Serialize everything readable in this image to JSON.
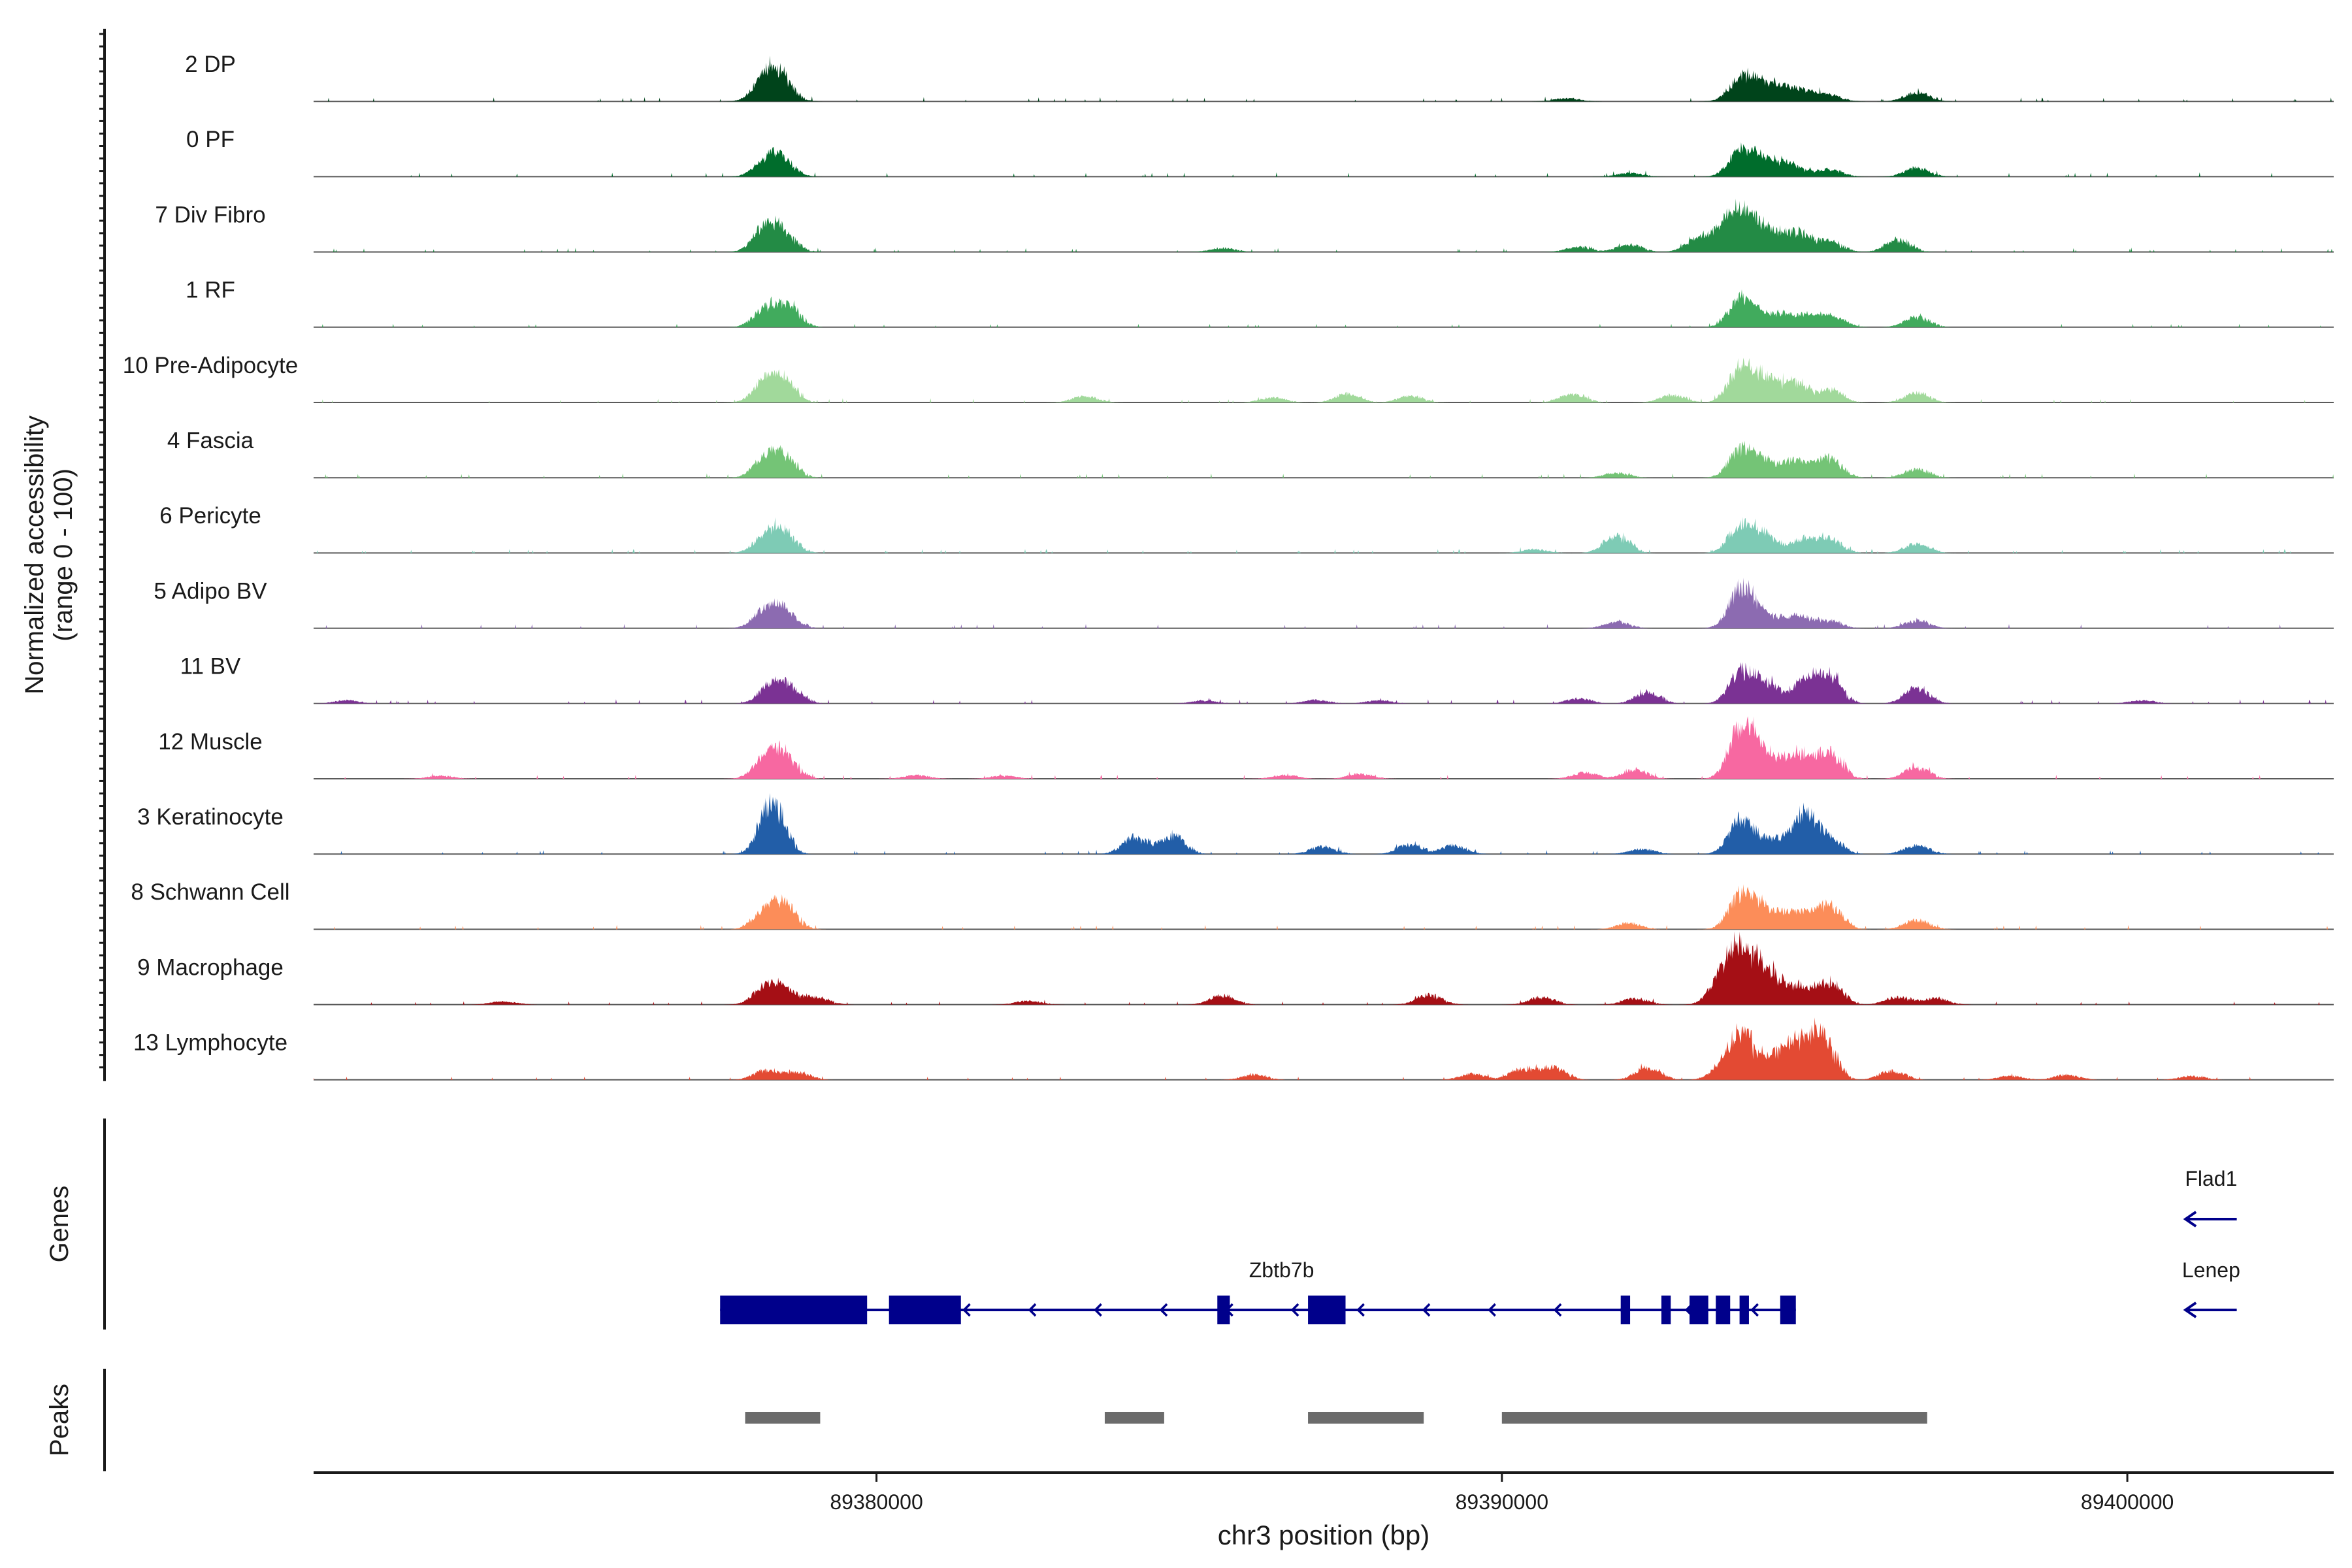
{
  "chart_data": {
    "type": "area",
    "title": "",
    "y_axis_title_line1": "Normalized accessibility",
    "y_axis_title_line2": "(range 0 - 100)",
    "y_range": [
      0,
      100
    ],
    "xlabel": "chr3 position (bp)",
    "xlim": [
      89371000,
      89403300
    ],
    "x_ticks": [
      {
        "value": 89380000,
        "label": "89380000"
      },
      {
        "value": 89390000,
        "label": "89390000"
      },
      {
        "value": 89400000,
        "label": "89400000"
      }
    ],
    "tracks": [
      {
        "name": "2 DP",
        "color": "#00441b",
        "peaks": [
          [
            89378200,
            38
          ],
          [
            89378450,
            30
          ],
          [
            89393800,
            36
          ],
          [
            89394150,
            22
          ],
          [
            89394450,
            18
          ],
          [
            89394800,
            14
          ],
          [
            89395200,
            10
          ],
          [
            89396600,
            14
          ],
          [
            89391000,
            5
          ]
        ]
      },
      {
        "name": "0 PF",
        "color": "#006d2c",
        "peaks": [
          [
            89378200,
            22
          ],
          [
            89378450,
            26
          ],
          [
            89393800,
            44
          ],
          [
            89394200,
            26
          ],
          [
            89394600,
            18
          ],
          [
            89395200,
            12
          ],
          [
            89396600,
            14
          ],
          [
            89392000,
            6
          ]
        ]
      },
      {
        "name": "7 Div Fibro",
        "color": "#238b45",
        "peaks": [
          [
            89378200,
            40
          ],
          [
            89378500,
            25
          ],
          [
            89393100,
            20
          ],
          [
            89393500,
            30
          ],
          [
            89393800,
            58
          ],
          [
            89394200,
            38
          ],
          [
            89394700,
            32
          ],
          [
            89395200,
            18
          ],
          [
            89396300,
            20
          ],
          [
            89392000,
            12
          ],
          [
            89391200,
            8
          ],
          [
            89385500,
            6
          ]
        ]
      },
      {
        "name": "1 RF",
        "color": "#41ab5d",
        "peaks": [
          [
            89378200,
            28
          ],
          [
            89378550,
            32
          ],
          [
            89393800,
            45
          ],
          [
            89394200,
            18
          ],
          [
            89394600,
            18
          ],
          [
            89395000,
            16
          ],
          [
            89395300,
            12
          ],
          [
            89396600,
            16
          ]
        ]
      },
      {
        "name": "10 Pre-Adipocyte",
        "color": "#a1d99b",
        "peaks": [
          [
            89378200,
            34
          ],
          [
            89378500,
            30
          ],
          [
            89393800,
            58
          ],
          [
            89394200,
            35
          ],
          [
            89394650,
            32
          ],
          [
            89395200,
            20
          ],
          [
            89396600,
            15
          ],
          [
            89391100,
            14
          ],
          [
            89392700,
            12
          ],
          [
            89387500,
            14
          ],
          [
            89388500,
            10
          ],
          [
            89386300,
            8
          ],
          [
            89383300,
            10
          ]
        ]
      },
      {
        "name": "4 Fascia",
        "color": "#74c476",
        "peaks": [
          [
            89378200,
            30
          ],
          [
            89378500,
            30
          ],
          [
            89393800,
            45
          ],
          [
            89394200,
            25
          ],
          [
            89394700,
            28
          ],
          [
            89395200,
            32
          ],
          [
            89396600,
            14
          ],
          [
            89391800,
            8
          ]
        ]
      },
      {
        "name": "6 Pericyte",
        "color": "#7ecbb5",
        "peaks": [
          [
            89378200,
            26
          ],
          [
            89378500,
            30
          ],
          [
            89391800,
            30
          ],
          [
            89393800,
            45
          ],
          [
            89394200,
            25
          ],
          [
            89394800,
            22
          ],
          [
            89395200,
            22
          ],
          [
            89396600,
            15
          ],
          [
            89390500,
            6
          ]
        ]
      },
      {
        "name": "5 Adipo BV",
        "color": "#8c6bb1",
        "peaks": [
          [
            89378200,
            28
          ],
          [
            89378500,
            26
          ],
          [
            89393800,
            65
          ],
          [
            89394200,
            20
          ],
          [
            89394700,
            20
          ],
          [
            89395200,
            12
          ],
          [
            89396600,
            12
          ],
          [
            89391800,
            10
          ]
        ]
      },
      {
        "name": "11 BV",
        "color": "#7b3294",
        "peaks": [
          [
            89378300,
            30
          ],
          [
            89378600,
            22
          ],
          [
            89393800,
            50
          ],
          [
            89394200,
            30
          ],
          [
            89394800,
            36
          ],
          [
            89395200,
            45
          ],
          [
            89396600,
            25
          ],
          [
            89392300,
            18
          ],
          [
            89391200,
            8
          ],
          [
            89385200,
            5
          ],
          [
            89387000,
            6
          ],
          [
            89388000,
            5
          ],
          [
            89400200,
            5
          ],
          [
            89371500,
            5
          ]
        ]
      },
      {
        "name": "12 Muscle",
        "color": "#f768a1",
        "peaks": [
          [
            89378200,
            32
          ],
          [
            89378500,
            35
          ],
          [
            89393800,
            85
          ],
          [
            89394200,
            40
          ],
          [
            89394700,
            40
          ],
          [
            89395200,
            45
          ],
          [
            89396600,
            18
          ],
          [
            89392100,
            14
          ],
          [
            89391300,
            10
          ],
          [
            89386500,
            6
          ],
          [
            89387700,
            8
          ],
          [
            89382000,
            5
          ],
          [
            89380600,
            6
          ],
          [
            89373000,
            5
          ]
        ]
      },
      {
        "name": "3 Keratinocyte",
        "color": "#225ea8",
        "peaks": [
          [
            89378300,
            86
          ],
          [
            89384100,
            28
          ],
          [
            89384700,
            30
          ],
          [
            89388500,
            15
          ],
          [
            89387100,
            12
          ],
          [
            89389200,
            14
          ],
          [
            89393800,
            55
          ],
          [
            89394300,
            22
          ],
          [
            89394800,
            65
          ],
          [
            89395200,
            25
          ],
          [
            89396600,
            15
          ],
          [
            89392200,
            8
          ]
        ]
      },
      {
        "name": "8 Schwann Cell",
        "color": "#fc8d59",
        "peaks": [
          [
            89378200,
            28
          ],
          [
            89378500,
            36
          ],
          [
            89393800,
            55
          ],
          [
            89394200,
            32
          ],
          [
            89394700,
            30
          ],
          [
            89395200,
            40
          ],
          [
            89396600,
            15
          ],
          [
            89392000,
            10
          ]
        ]
      },
      {
        "name": "9 Macrophage",
        "color": "#a50f15",
        "peaks": [
          [
            89378200,
            28
          ],
          [
            89378500,
            20
          ],
          [
            89379000,
            12
          ],
          [
            89385500,
            15
          ],
          [
            89388800,
            16
          ],
          [
            89390600,
            12
          ],
          [
            89392100,
            10
          ],
          [
            89393500,
            45
          ],
          [
            89393800,
            78
          ],
          [
            89394200,
            55
          ],
          [
            89394700,
            28
          ],
          [
            89395200,
            36
          ],
          [
            89396300,
            12
          ],
          [
            89396900,
            10
          ],
          [
            89382400,
            6
          ],
          [
            89374000,
            5
          ]
        ]
      },
      {
        "name": "13 Lymphocyte",
        "color": "#e34a33",
        "peaks": [
          [
            89378200,
            15
          ],
          [
            89378700,
            12
          ],
          [
            89390300,
            18
          ],
          [
            89390800,
            20
          ],
          [
            89392300,
            20
          ],
          [
            89393500,
            18
          ],
          [
            89393800,
            72
          ],
          [
            89394300,
            35
          ],
          [
            89394700,
            55
          ],
          [
            89395100,
            70
          ],
          [
            89396200,
            14
          ],
          [
            89386000,
            8
          ],
          [
            89389500,
            10
          ],
          [
            89399000,
            8
          ],
          [
            89398100,
            6
          ],
          [
            89401000,
            6
          ]
        ]
      }
    ],
    "genes_label": "Genes",
    "genes": [
      {
        "name": "Lenep",
        "strand": "-",
        "start": 89400930,
        "end": 89401750,
        "row": 1
      },
      {
        "name": "Flad1",
        "strand": "-",
        "start": 89400930,
        "end": 89401750,
        "row": 0
      },
      {
        "name": "Zbtb7b",
        "strand": "-",
        "start": 89377500,
        "end": 89394700,
        "row": 1,
        "exons": [
          [
            89377500,
            89379850
          ],
          [
            89380200,
            89381350
          ],
          [
            89385450,
            89385650
          ],
          [
            89386900,
            89387500
          ],
          [
            89391900,
            89392050
          ],
          [
            89392550,
            89392700
          ],
          [
            89393000,
            89393300
          ],
          [
            89393420,
            89393650
          ],
          [
            89393800,
            89393950
          ],
          [
            89394450,
            89394700
          ]
        ]
      }
    ],
    "peaks_label": "Peaks",
    "peak_regions": [
      [
        89377900,
        89379100
      ],
      [
        89383650,
        89384600
      ],
      [
        89386900,
        89388750
      ],
      [
        89390000,
        89396800
      ]
    ]
  }
}
